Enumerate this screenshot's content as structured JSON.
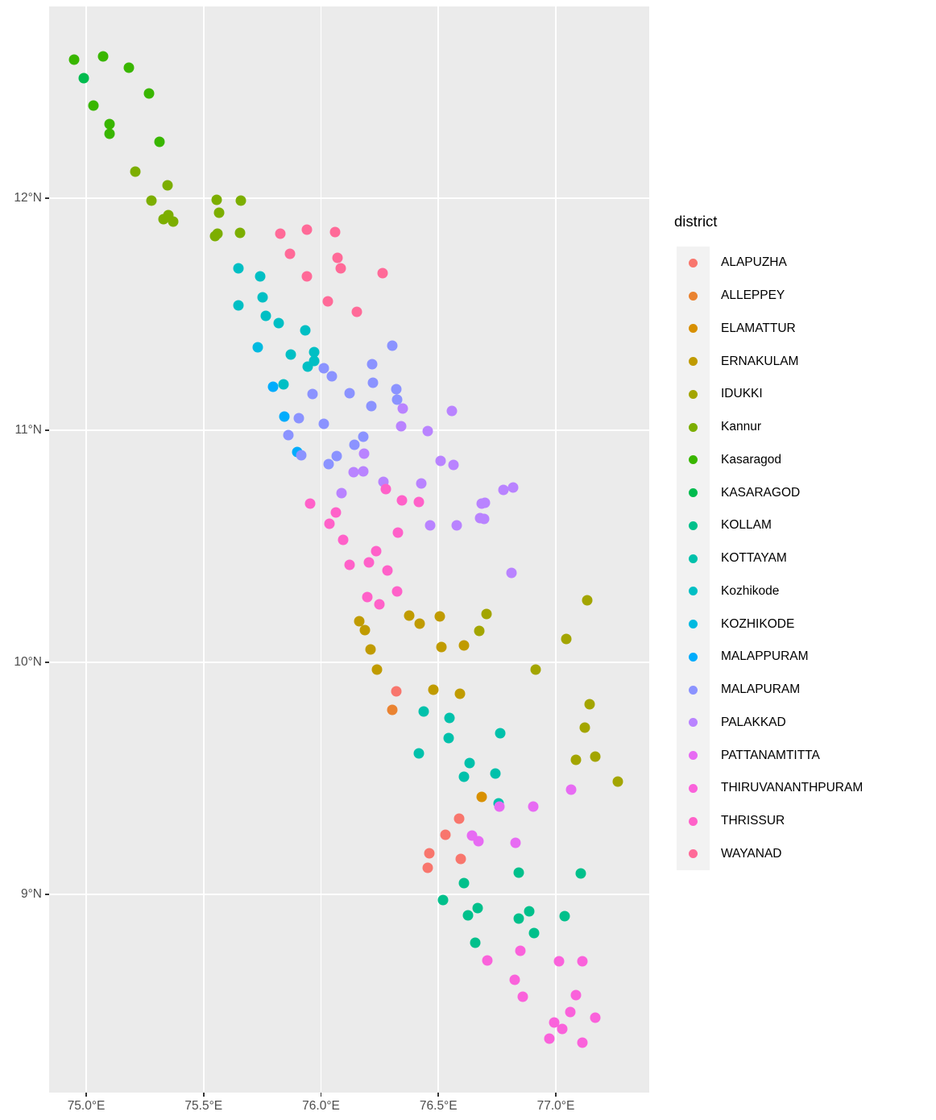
{
  "legend": {
    "title": "district"
  },
  "chart_data": {
    "type": "scatter",
    "title": "",
    "xlabel": "",
    "ylabel": "",
    "grid": true,
    "legend_position": "right",
    "legend_title": "district",
    "xlim": [
      74.842,
      77.398
    ],
    "ylim": [
      8.146,
      12.826
    ],
    "x_ticks": [
      {
        "label": "75.0°E",
        "value": 75.0
      },
      {
        "label": "75.5°E",
        "value": 75.5
      },
      {
        "label": "76.0°E",
        "value": 76.0
      },
      {
        "label": "76.5°E",
        "value": 76.5
      },
      {
        "label": "77.0°E",
        "value": 77.0
      }
    ],
    "y_ticks": [
      {
        "label": "12°N",
        "value": 12
      },
      {
        "label": "11°N",
        "value": 11
      },
      {
        "label": "10°N",
        "value": 10
      },
      {
        "label": "9°N",
        "value": 9
      }
    ],
    "series": [
      {
        "name": "ALAPUZHA",
        "color": "#F8766D",
        "points": [
          [
            76.321,
            9.875
          ],
          [
            76.588,
            9.326
          ],
          [
            76.53,
            9.257
          ],
          [
            76.461,
            9.177
          ],
          [
            76.595,
            9.153
          ],
          [
            76.455,
            9.115
          ]
        ]
      },
      {
        "name": "ALLEPPEY",
        "color": "#EA8331",
        "points": [
          [
            76.304,
            9.795
          ]
        ]
      },
      {
        "name": "ELAMATTUR",
        "color": "#D89000",
        "points": [
          [
            76.684,
            9.42
          ]
        ]
      },
      {
        "name": "ERNAKULAM",
        "color": "#C09B00",
        "points": [
          [
            76.163,
            10.177
          ],
          [
            76.187,
            10.139
          ],
          [
            76.376,
            10.201
          ],
          [
            76.506,
            10.198
          ],
          [
            76.42,
            10.167
          ],
          [
            76.211,
            10.056
          ],
          [
            76.513,
            10.066
          ],
          [
            76.609,
            10.073
          ],
          [
            76.238,
            9.969
          ],
          [
            76.479,
            9.882
          ],
          [
            76.592,
            9.865
          ]
        ]
      },
      {
        "name": "IDUKKI",
        "color": "#A3A500",
        "points": [
          [
            77.134,
            10.267
          ],
          [
            76.705,
            10.208
          ],
          [
            76.674,
            10.135
          ],
          [
            77.045,
            10.101
          ],
          [
            76.914,
            9.969
          ],
          [
            77.144,
            9.819
          ],
          [
            77.123,
            9.719
          ],
          [
            77.168,
            9.594
          ],
          [
            77.086,
            9.58
          ],
          [
            77.264,
            9.486
          ]
        ]
      },
      {
        "name": "Kannur",
        "color": "#7CAE00",
        "points": [
          [
            75.209,
            12.115
          ],
          [
            75.346,
            12.056
          ],
          [
            75.278,
            11.99
          ],
          [
            75.556,
            11.993
          ],
          [
            75.659,
            11.99
          ],
          [
            75.566,
            11.938
          ],
          [
            75.35,
            11.927
          ],
          [
            75.329,
            11.91
          ],
          [
            75.37,
            11.899
          ],
          [
            75.559,
            11.847
          ],
          [
            75.549,
            11.837
          ],
          [
            75.655,
            11.851
          ]
        ]
      },
      {
        "name": "Kasaragod",
        "color": "#39B600",
        "points": [
          [
            74.949,
            12.597
          ],
          [
            75.072,
            12.611
          ],
          [
            75.182,
            12.563
          ],
          [
            75.268,
            12.451
          ],
          [
            75.031,
            12.399
          ],
          [
            75.099,
            12.319
          ],
          [
            75.099,
            12.278
          ],
          [
            75.312,
            12.243
          ]
        ]
      },
      {
        "name": "KASARAGOD",
        "color": "#00BB4E",
        "points": [
          [
            74.99,
            12.517
          ]
        ]
      },
      {
        "name": "KOLLAM",
        "color": "#00C08B",
        "points": [
          [
            76.842,
            9.094
          ],
          [
            77.106,
            9.09
          ],
          [
            76.609,
            9.049
          ],
          [
            76.52,
            8.976
          ],
          [
            76.667,
            8.941
          ],
          [
            76.887,
            8.927
          ],
          [
            76.626,
            8.91
          ],
          [
            77.038,
            8.906
          ],
          [
            76.842,
            8.896
          ],
          [
            76.907,
            8.833
          ],
          [
            76.657,
            8.792
          ]
        ]
      },
      {
        "name": "KOTTAYAM",
        "color": "#00C1AB",
        "points": [
          [
            76.437,
            9.788
          ],
          [
            76.547,
            9.76
          ],
          [
            76.763,
            9.694
          ],
          [
            76.544,
            9.674
          ],
          [
            76.417,
            9.608
          ],
          [
            76.633,
            9.566
          ],
          [
            76.743,
            9.521
          ],
          [
            76.609,
            9.507
          ],
          [
            76.756,
            9.392
          ]
        ]
      },
      {
        "name": "Kozhikode",
        "color": "#00BFC4",
        "points": [
          [
            75.648,
            11.698
          ],
          [
            75.741,
            11.663
          ],
          [
            75.751,
            11.573
          ],
          [
            75.648,
            11.538
          ],
          [
            75.765,
            11.493
          ],
          [
            75.82,
            11.462
          ],
          [
            75.933,
            11.431
          ],
          [
            75.971,
            11.337
          ],
          [
            75.871,
            11.326
          ],
          [
            75.971,
            11.299
          ],
          [
            75.943,
            11.274
          ],
          [
            75.84,
            11.198
          ]
        ]
      },
      {
        "name": "KOZHIKODE",
        "color": "#00BAE0",
        "points": [
          [
            75.731,
            11.358
          ]
        ]
      },
      {
        "name": "MALAPPURAM",
        "color": "#00ACFC",
        "points": [
          [
            75.796,
            11.188
          ],
          [
            75.844,
            11.059
          ],
          [
            75.899,
            10.906
          ]
        ]
      },
      {
        "name": "MALAPURAM",
        "color": "#8B93FF",
        "points": [
          [
            76.304,
            11.365
          ],
          [
            76.218,
            11.285
          ],
          [
            76.012,
            11.267
          ],
          [
            76.046,
            11.233
          ],
          [
            76.221,
            11.205
          ],
          [
            76.321,
            11.177
          ],
          [
            76.122,
            11.16
          ],
          [
            75.964,
            11.156
          ],
          [
            76.324,
            11.132
          ],
          [
            76.214,
            11.104
          ],
          [
            75.906,
            11.052
          ],
          [
            76.012,
            11.028
          ],
          [
            75.861,
            10.979
          ],
          [
            76.18,
            10.972
          ],
          [
            76.142,
            10.938
          ],
          [
            76.067,
            10.889
          ],
          [
            75.916,
            10.892
          ],
          [
            76.033,
            10.854
          ]
        ]
      },
      {
        "name": "PALAKKAD",
        "color": "#B983FF",
        "points": [
          [
            76.348,
            11.094
          ],
          [
            76.557,
            11.083
          ],
          [
            76.341,
            11.017
          ],
          [
            76.455,
            10.997
          ],
          [
            76.183,
            10.899
          ],
          [
            76.509,
            10.868
          ],
          [
            76.564,
            10.851
          ],
          [
            76.18,
            10.823
          ],
          [
            76.139,
            10.819
          ],
          [
            76.266,
            10.778
          ],
          [
            76.427,
            10.771
          ],
          [
            76.818,
            10.753
          ],
          [
            76.777,
            10.743
          ],
          [
            76.088,
            10.729
          ],
          [
            76.684,
            10.684
          ],
          [
            76.698,
            10.688
          ],
          [
            76.678,
            10.622
          ],
          [
            76.695,
            10.618
          ],
          [
            76.465,
            10.59
          ],
          [
            76.578,
            10.59
          ],
          [
            76.811,
            10.385
          ]
        ]
      },
      {
        "name": "PATTANAMTITTA",
        "color": "#E76BF3",
        "points": [
          [
            77.065,
            9.451
          ],
          [
            76.76,
            9.378
          ],
          [
            76.904,
            9.378
          ],
          [
            76.643,
            9.253
          ],
          [
            76.671,
            9.229
          ],
          [
            76.829,
            9.222
          ]
        ]
      },
      {
        "name": "THIRUVANANTHPURAM",
        "color": "#FA62DB",
        "points": [
          [
            76.849,
            8.757
          ],
          [
            76.708,
            8.715
          ],
          [
            77.014,
            8.712
          ],
          [
            77.113,
            8.712
          ],
          [
            76.825,
            8.632
          ],
          [
            76.859,
            8.559
          ],
          [
            77.086,
            8.566
          ],
          [
            77.062,
            8.493
          ],
          [
            77.168,
            8.469
          ],
          [
            76.993,
            8.448
          ],
          [
            77.027,
            8.42
          ],
          [
            76.972,
            8.378
          ],
          [
            77.113,
            8.361
          ]
        ]
      },
      {
        "name": "THRISSUR",
        "color": "#FF61C9",
        "points": [
          [
            76.276,
            10.747
          ],
          [
            76.345,
            10.698
          ],
          [
            76.417,
            10.691
          ],
          [
            75.954,
            10.684
          ],
          [
            76.063,
            10.646
          ],
          [
            76.036,
            10.597
          ],
          [
            76.328,
            10.559
          ],
          [
            76.094,
            10.528
          ],
          [
            76.235,
            10.479
          ],
          [
            76.204,
            10.431
          ],
          [
            76.122,
            10.42
          ],
          [
            76.283,
            10.396
          ],
          [
            76.324,
            10.306
          ],
          [
            76.197,
            10.281
          ],
          [
            76.249,
            10.25
          ]
        ]
      },
      {
        "name": "WAYANAD",
        "color": "#FF6A98",
        "points": [
          [
            75.827,
            11.847
          ],
          [
            75.94,
            11.865
          ],
          [
            76.06,
            11.854
          ],
          [
            75.868,
            11.76
          ],
          [
            76.07,
            11.743
          ],
          [
            76.084,
            11.698
          ],
          [
            76.262,
            11.677
          ],
          [
            75.94,
            11.663
          ],
          [
            76.029,
            11.556
          ],
          [
            76.153,
            11.51
          ]
        ]
      }
    ]
  }
}
